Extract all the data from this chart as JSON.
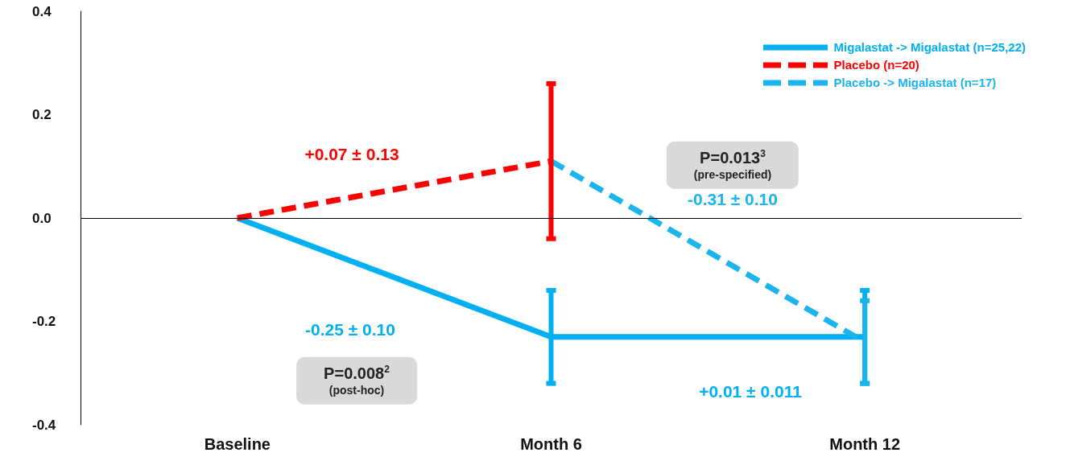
{
  "chart_data": {
    "type": "line",
    "categories": [
      "Baseline",
      "Month 6",
      "Month 12"
    ],
    "series": [
      {
        "name": "Migalastat -> Migalastat (n=25,22)",
        "color": "#00b0f0",
        "line_style": "solid",
        "values": [
          0,
          -0.23,
          -0.23
        ],
        "errors": [
          null,
          0.09,
          0.09
        ]
      },
      {
        "name": "Placebo (n=20)",
        "color": "#ff0000",
        "line_style": "dashed",
        "values": [
          0,
          0.11,
          null
        ],
        "errors": [
          null,
          0.15,
          null
        ]
      },
      {
        "name": "Placebo -> Migalastat (n=17)",
        "color": "#1ab4ee",
        "line_style": "dashed",
        "values": [
          null,
          0.11,
          -0.24
        ],
        "errors": [
          null,
          null,
          0.08
        ]
      }
    ],
    "ylim": [
      -0.4,
      0.4
    ],
    "yticks": [
      {
        "value": -0.4,
        "label": "-0.4"
      },
      {
        "value": -0.2,
        "label": "-0.2"
      },
      {
        "value": 0,
        "label": "0.0"
      },
      {
        "value": 0.2,
        "label": "0.2"
      },
      {
        "value": 0.4,
        "label": "0.4"
      }
    ],
    "ref_lines": [
      {
        "axis": "y",
        "value": 0,
        "color": "#000000"
      }
    ],
    "annotations": [
      "+0.07 ± 0.13",
      "P=0.013$^{3}$\n(pre-specified)",
      "-0.31 ± 0.10",
      "-0.25 ± 0.10",
      "P=0.008$^{2}$\n(post-hoc)",
      "+0.01 ± 0.011"
    ],
    "grid": false,
    "legend": "top right",
    "marker": "none"
  }
}
